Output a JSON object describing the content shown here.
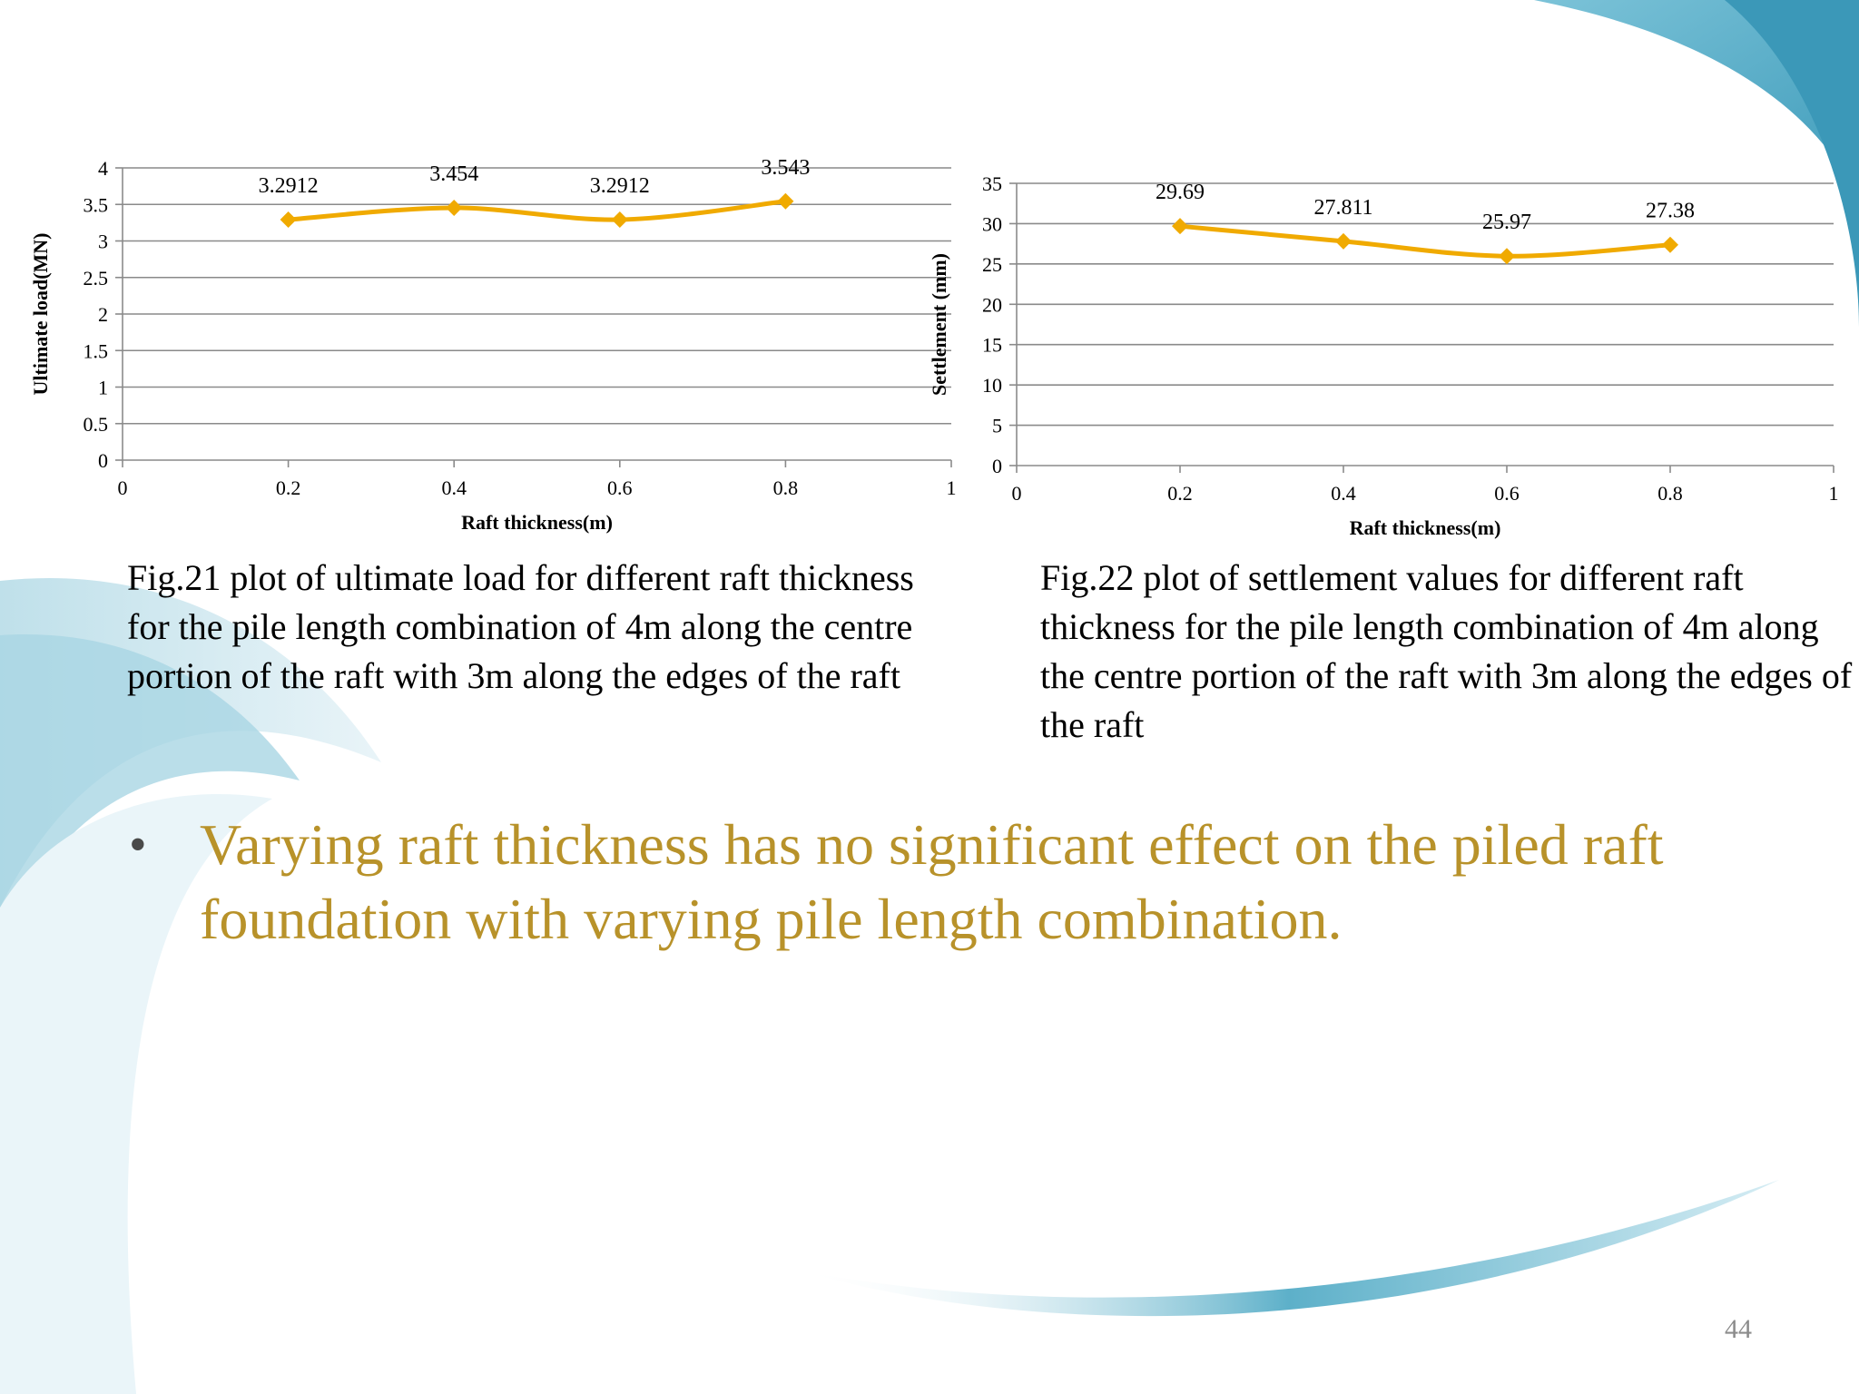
{
  "slide": {
    "page_number": "44",
    "bullet": "Varying raft thickness has no significant effect on the piled raft foundation with varying pile length combination.",
    "bullet_color": "#b8922a",
    "accent_color": "#4fa8c4"
  },
  "captions": {
    "fig21": "Fig.21 plot of ultimate load for different raft thickness for the pile length combination of 4m along the centre portion of the raft with 3m along the edges of the raft",
    "fig22": "Fig.22 plot of settlement values for different raft thickness for the pile length combination of 4m along the centre portion of the raft with 3m along the edges of the raft"
  },
  "chart_data": [
    {
      "type": "scatter",
      "title": "",
      "xlabel": "Raft thickness(m)",
      "ylabel": "Ultimate load(MN)",
      "xlim": [
        0,
        1
      ],
      "ylim": [
        0,
        4
      ],
      "x_ticks": [
        "0",
        "0.2",
        "0.4",
        "0.6",
        "0.8",
        "1"
      ],
      "y_ticks": [
        "0",
        "0.5",
        "1",
        "1.5",
        "2",
        "2.5",
        "3",
        "3.5",
        "4"
      ],
      "grid": true,
      "line_color": "#f0aa00",
      "smooth": true,
      "series": [
        {
          "x": [
            0.2,
            0.4,
            0.6,
            0.8
          ],
          "y": [
            3.2912,
            3.454,
            3.2912,
            3.543
          ],
          "labels": [
            "3.2912",
            "3.454",
            "3.2912",
            "3.543"
          ]
        }
      ]
    },
    {
      "type": "scatter",
      "title": "",
      "xlabel": "Raft thickness(m)",
      "ylabel": "Settlement (mm)",
      "xlim": [
        0,
        1
      ],
      "ylim": [
        0,
        35
      ],
      "x_ticks": [
        "0",
        "0.2",
        "0.4",
        "0.6",
        "0.8",
        "1"
      ],
      "y_ticks": [
        "0",
        "5",
        "10",
        "15",
        "20",
        "25",
        "30",
        "35"
      ],
      "grid": true,
      "line_color": "#f0aa00",
      "smooth": true,
      "series": [
        {
          "x": [
            0.2,
            0.4,
            0.6,
            0.8
          ],
          "y": [
            29.69,
            27.811,
            25.97,
            27.38
          ],
          "labels": [
            "29.69",
            "27.811",
            "25.97",
            "27.38"
          ]
        }
      ]
    }
  ]
}
